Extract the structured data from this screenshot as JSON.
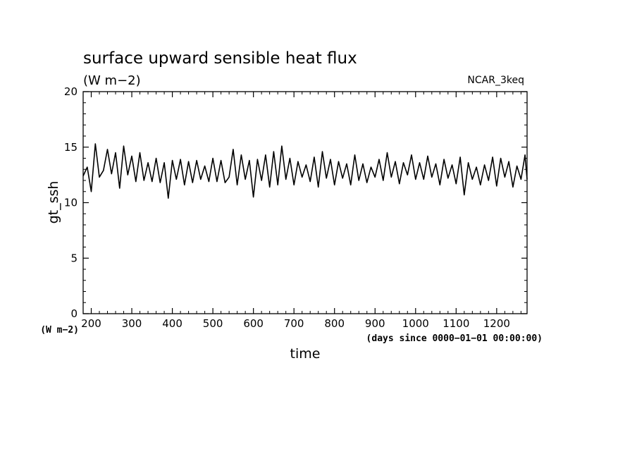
{
  "chart_data": {
    "type": "line",
    "title": "surface upward sensible heat flux",
    "units": "(W m−2)",
    "dataset": "NCAR_3keq",
    "ylabel": "gt_ssh",
    "xlabel": "time",
    "xunits": "(days since 0000−01−01 00:00:00)",
    "yunits_corner": "(W m−2)",
    "xlim": [
      180,
      1275
    ],
    "ylim": [
      0,
      20
    ],
    "x_ticks": [
      200,
      300,
      400,
      500,
      600,
      700,
      800,
      900,
      1000,
      1100,
      1200
    ],
    "y_ticks": [
      0,
      5,
      10,
      15,
      20
    ],
    "grid": false,
    "series": [
      {
        "x": [
          180,
          190,
          200,
          210,
          220,
          230,
          240,
          250,
          260,
          270,
          280,
          290,
          300,
          310,
          320,
          330,
          340,
          350,
          360,
          370,
          380,
          390,
          400,
          410,
          420,
          430,
          440,
          450,
          460,
          470,
          480,
          490,
          500,
          510,
          520,
          530,
          540,
          550,
          560,
          570,
          580,
          590,
          600,
          610,
          620,
          630,
          640,
          650,
          660,
          670,
          680,
          690,
          700,
          710,
          720,
          730,
          740,
          750,
          760,
          770,
          780,
          790,
          800,
          810,
          820,
          830,
          840,
          850,
          860,
          870,
          880,
          890,
          900,
          910,
          920,
          930,
          940,
          950,
          960,
          970,
          980,
          990,
          1000,
          1010,
          1020,
          1030,
          1040,
          1050,
          1060,
          1070,
          1080,
          1090,
          1100,
          1110,
          1120,
          1130,
          1140,
          1150,
          1160,
          1170,
          1180,
          1190,
          1200,
          1210,
          1220,
          1230,
          1240,
          1250,
          1260,
          1270,
          1275
        ],
        "values": [
          12.4,
          13.2,
          11.0,
          15.3,
          12.3,
          12.9,
          14.8,
          12.6,
          14.5,
          11.3,
          15.1,
          12.5,
          14.2,
          11.9,
          14.5,
          12.0,
          13.6,
          11.9,
          14.0,
          11.8,
          13.6,
          10.4,
          13.8,
          12.1,
          13.9,
          11.6,
          13.7,
          11.8,
          13.8,
          12.1,
          13.3,
          11.9,
          14.0,
          11.9,
          13.8,
          11.8,
          12.3,
          14.8,
          11.6,
          14.3,
          12.1,
          13.8,
          10.5,
          13.9,
          12.0,
          14.3,
          11.4,
          14.6,
          11.6,
          15.1,
          12.1,
          14.0,
          11.6,
          13.7,
          12.3,
          13.4,
          11.9,
          14.1,
          11.4,
          14.6,
          12.2,
          13.9,
          11.6,
          13.7,
          12.2,
          13.5,
          11.6,
          14.3,
          12.0,
          13.5,
          11.8,
          13.2,
          12.3,
          13.9,
          12.0,
          14.5,
          12.3,
          13.7,
          11.7,
          13.6,
          12.5,
          14.3,
          12.1,
          13.6,
          12.1,
          14.2,
          12.3,
          13.5,
          11.6,
          13.9,
          12.2,
          13.4,
          11.7,
          14.1,
          10.7,
          13.6,
          12.1,
          13.2,
          11.6,
          13.4,
          12.0,
          14.1,
          11.5,
          14.0,
          12.3,
          13.7,
          11.4,
          13.3,
          12.1,
          14.3,
          12.1
        ]
      }
    ]
  }
}
